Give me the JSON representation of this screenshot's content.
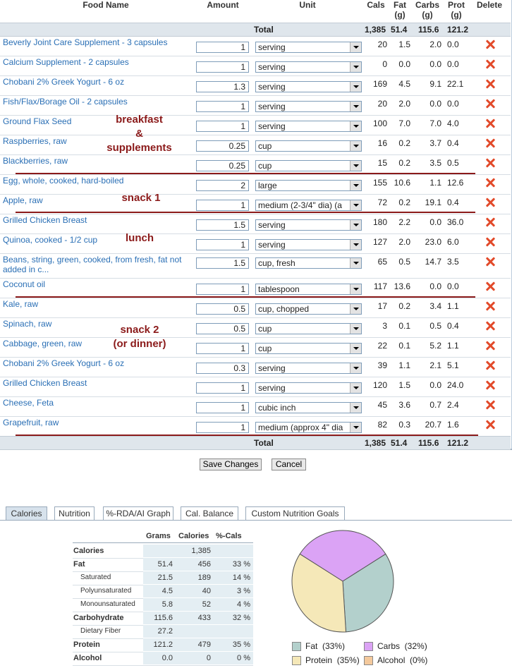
{
  "headers": {
    "food_name": "Food Name",
    "amount": "Amount",
    "unit": "Unit",
    "cals": "Cals",
    "fat": "Fat (g)",
    "carbs": "Carbs (g)",
    "prot": "Prot (g)",
    "delete": "Delete"
  },
  "total": {
    "label": "Total",
    "cals": "1,385",
    "fat": "51.4",
    "carbs": "115.6",
    "prot": "121.2"
  },
  "foods": [
    {
      "name": "Beverly Joint Care Supplement - 3 capsules",
      "amount": "1",
      "unit": "serving",
      "cals": "20",
      "fat": "1.5",
      "carbs": "2.0",
      "prot": "0.0"
    },
    {
      "name": "Calcium Supplement - 2 capsules",
      "amount": "1",
      "unit": "serving",
      "cals": "0",
      "fat": "0.0",
      "carbs": "0.0",
      "prot": "0.0"
    },
    {
      "name": "Chobani 2% Greek Yogurt - 6 oz",
      "amount": "1.3",
      "unit": "serving",
      "cals": "169",
      "fat": "4.5",
      "carbs": "9.1",
      "prot": "22.1"
    },
    {
      "name": "Fish/Flax/Borage Oil - 2 capsules",
      "amount": "1",
      "unit": "serving",
      "cals": "20",
      "fat": "2.0",
      "carbs": "0.0",
      "prot": "0.0"
    },
    {
      "name": "Ground Flax Seed",
      "amount": "1",
      "unit": "serving",
      "cals": "100",
      "fat": "7.0",
      "carbs": "7.0",
      "prot": "4.0"
    },
    {
      "name": "Raspberries, raw",
      "amount": "0.25",
      "unit": "cup",
      "cals": "16",
      "fat": "0.2",
      "carbs": "3.7",
      "prot": "0.4"
    },
    {
      "name": "Blackberries, raw",
      "amount": "0.25",
      "unit": "cup",
      "cals": "15",
      "fat": "0.2",
      "carbs": "3.5",
      "prot": "0.5"
    },
    {
      "name": "Egg, whole, cooked, hard-boiled",
      "amount": "2",
      "unit": "large",
      "cals": "155",
      "fat": "10.6",
      "carbs": "1.1",
      "prot": "12.6"
    },
    {
      "name": "Apple, raw",
      "amount": "1",
      "unit": "medium (2-3/4\" dia) (a",
      "cals": "72",
      "fat": "0.2",
      "carbs": "19.1",
      "prot": "0.4"
    },
    {
      "name": "Grilled Chicken Breast",
      "amount": "1.5",
      "unit": "serving",
      "cals": "180",
      "fat": "2.2",
      "carbs": "0.0",
      "prot": "36.0"
    },
    {
      "name": "Quinoa, cooked - 1/2 cup",
      "amount": "1",
      "unit": "serving",
      "cals": "127",
      "fat": "2.0",
      "carbs": "23.0",
      "prot": "6.0"
    },
    {
      "name": "Beans, string, green, cooked, from fresh, fat not added in c...",
      "amount": "1.5",
      "unit": "cup, fresh",
      "cals": "65",
      "fat": "0.5",
      "carbs": "14.7",
      "prot": "3.5"
    },
    {
      "name": "Coconut oil",
      "amount": "1",
      "unit": "tablespoon",
      "cals": "117",
      "fat": "13.6",
      "carbs": "0.0",
      "prot": "0.0"
    },
    {
      "name": "Kale, raw",
      "amount": "0.5",
      "unit": "cup, chopped",
      "cals": "17",
      "fat": "0.2",
      "carbs": "3.4",
      "prot": "1.1"
    },
    {
      "name": "Spinach, raw",
      "amount": "0.5",
      "unit": "cup",
      "cals": "3",
      "fat": "0.1",
      "carbs": "0.5",
      "prot": "0.4"
    },
    {
      "name": "Cabbage, green, raw",
      "amount": "1",
      "unit": "cup",
      "cals": "22",
      "fat": "0.1",
      "carbs": "5.2",
      "prot": "1.1"
    },
    {
      "name": "Chobani 2% Greek Yogurt - 6 oz",
      "amount": "0.3",
      "unit": "serving",
      "cals": "39",
      "fat": "1.1",
      "carbs": "2.1",
      "prot": "5.1"
    },
    {
      "name": "Grilled Chicken Breast",
      "amount": "1",
      "unit": "serving",
      "cals": "120",
      "fat": "1.5",
      "carbs": "0.0",
      "prot": "24.0"
    },
    {
      "name": "Cheese, Feta",
      "amount": "1",
      "unit": "cubic inch",
      "cals": "45",
      "fat": "3.6",
      "carbs": "0.7",
      "prot": "2.4"
    },
    {
      "name": "Grapefruit, raw",
      "amount": "1",
      "unit": "medium (approx 4\" dia",
      "cals": "82",
      "fat": "0.3",
      "carbs": "20.7",
      "prot": "1.6"
    }
  ],
  "annotations": {
    "breakfast_1": "breakfast",
    "breakfast_2": "&",
    "breakfast_3": "supplements",
    "snack1": "snack 1",
    "lunch": "lunch",
    "snack2_1": "snack 2",
    "snack2_2": "(or dinner)"
  },
  "buttons": {
    "save": "Save Changes",
    "cancel": "Cancel"
  },
  "tabs": [
    "Calories",
    "Nutrition",
    "%-RDA/AI Graph",
    "Cal. Balance",
    "Custom Nutrition Goals"
  ],
  "active_tab": "Calories",
  "nutrition": {
    "headers": {
      "grams": "Grams",
      "calories": "Calories",
      "pct": "%-Cals"
    },
    "rows": [
      {
        "label": "Calories",
        "grams": "",
        "calories": "1,385",
        "pct": ""
      },
      {
        "label": "Fat",
        "grams": "51.4",
        "calories": "456",
        "pct": "33 %"
      },
      {
        "label": "Saturated",
        "grams": "21.5",
        "calories": "189",
        "pct": "14 %"
      },
      {
        "label": "Polyunsaturated",
        "grams": "4.5",
        "calories": "40",
        "pct": "3 %"
      },
      {
        "label": "Monounsaturated",
        "grams": "5.8",
        "calories": "52",
        "pct": "4 %"
      },
      {
        "label": "Carbohydrate",
        "grams": "115.6",
        "calories": "433",
        "pct": "32 %"
      },
      {
        "label": "Dietary Fiber",
        "grams": "27.2",
        "calories": "",
        "pct": ""
      },
      {
        "label": "Protein",
        "grams": "121.2",
        "calories": "479",
        "pct": "35 %"
      },
      {
        "label": "Alcohol",
        "grams": "0.0",
        "calories": "0",
        "pct": "0 %"
      }
    ]
  },
  "chart_data": {
    "type": "pie",
    "title": "",
    "categories": [
      "Fat",
      "Carbs",
      "Protein",
      "Alcohol"
    ],
    "values": [
      33,
      32,
      35,
      0
    ],
    "legend": [
      "Fat  (33%)",
      "Carbs  (32%)",
      "Protein  (35%)",
      "Alcohol  (0%)"
    ],
    "colors": {
      "Fat": "#b3d0cc",
      "Carbs": "#dba3f5",
      "Protein": "#f5e8b8",
      "Alcohol": "#f4c99c"
    },
    "legend_placement": "bottom"
  }
}
